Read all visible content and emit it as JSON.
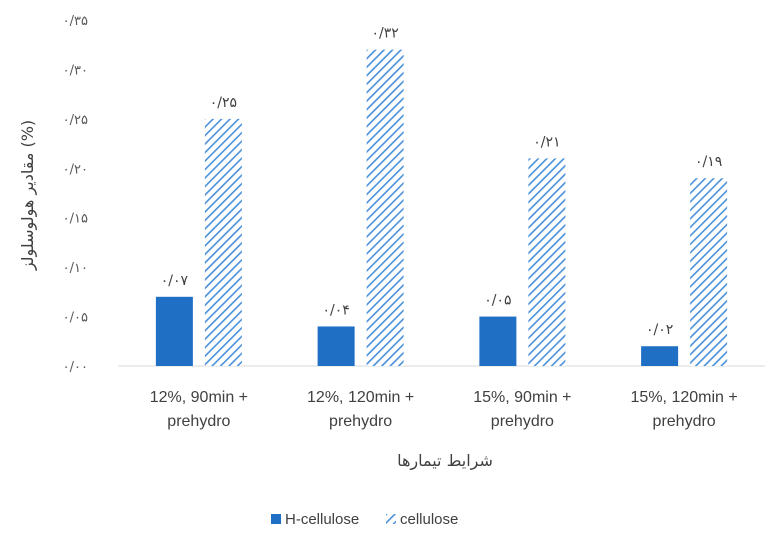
{
  "chart_data": {
    "type": "bar",
    "categories": [
      [
        "12%, 90min +",
        "prehydro"
      ],
      [
        "12%, 120min +",
        "prehydro"
      ],
      [
        "15%, 90min +",
        "prehydro"
      ],
      [
        "15%, 120min +",
        "prehydro"
      ]
    ],
    "series": [
      {
        "name": "H-cellulose",
        "values": [
          0.07,
          0.04,
          0.05,
          0.02
        ],
        "labels": [
          "۰/۰۷",
          "۰/۰۴",
          "۰/۰۵",
          "۰/۰۲"
        ],
        "color": "#1f6fc5",
        "fill": "solid"
      },
      {
        "name": "cellulose",
        "values": [
          0.25,
          0.32,
          0.21,
          0.19
        ],
        "labels": [
          "۰/۲۵",
          "۰/۳۲",
          "۰/۲۱",
          "۰/۱۹"
        ],
        "color": "#4a90d9",
        "fill": "hatched"
      }
    ],
    "ylim": [
      0,
      0.35
    ],
    "yticks": [
      0,
      0.05,
      0.1,
      0.15,
      0.2,
      0.25,
      0.3,
      0.35
    ],
    "ytick_labels": [
      "۰/۰۰",
      "۰/۰۵",
      "۰/۱۰",
      "۰/۱۵",
      "۰/۲۰",
      "۰/۲۵",
      "۰/۳۰",
      "۰/۳۵"
    ],
    "xlabel": "شرایط تیمارها",
    "ylabel": "مقادیر هولوسلولز (%)",
    "grid": false,
    "legend": "bottom"
  }
}
